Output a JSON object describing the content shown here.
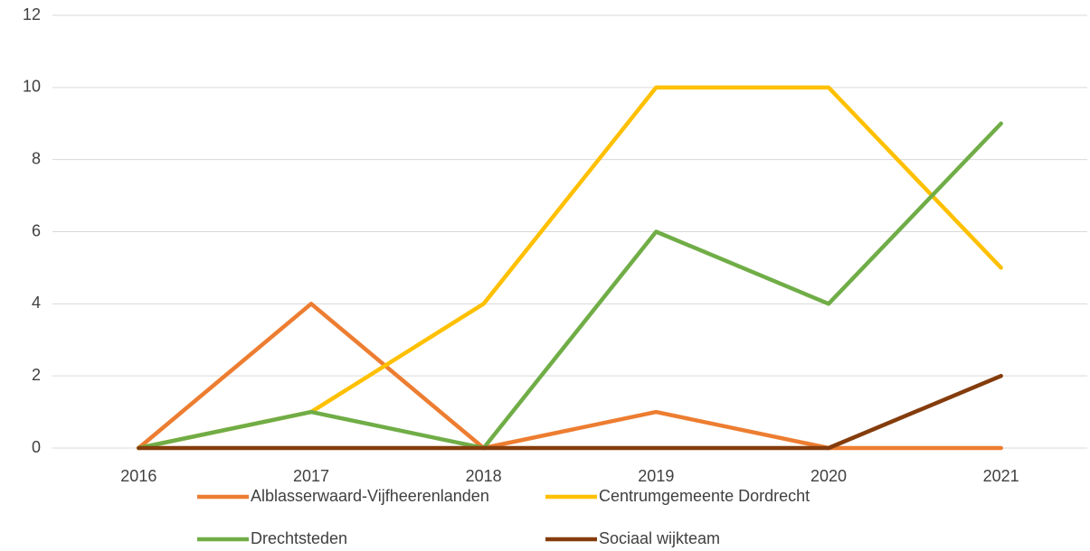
{
  "chart_data": {
    "type": "line",
    "categories": [
      "2016",
      "2017",
      "2018",
      "2019",
      "2020",
      "2021"
    ],
    "series": [
      {
        "name": "Alblasserwaard-Vijfheerenlanden",
        "color": "#ED7D31",
        "values": [
          0,
          4,
          0,
          1,
          0,
          0
        ]
      },
      {
        "name": "Centrumgemeente Dordrecht",
        "color": "#FFC000",
        "values": [
          0,
          1,
          4,
          10,
          10,
          5
        ]
      },
      {
        "name": "Drechtsteden",
        "color": "#70AD47",
        "values": [
          0,
          1,
          0,
          6,
          4,
          9
        ]
      },
      {
        "name": "Sociaal wijkteam",
        "color": "#843C0C",
        "values": [
          0,
          0,
          0,
          0,
          0,
          2
        ]
      }
    ],
    "ylim": [
      0,
      12
    ],
    "yticks": [
      0,
      2,
      4,
      6,
      8,
      10,
      12
    ],
    "grid": true,
    "legend": "bottom"
  }
}
